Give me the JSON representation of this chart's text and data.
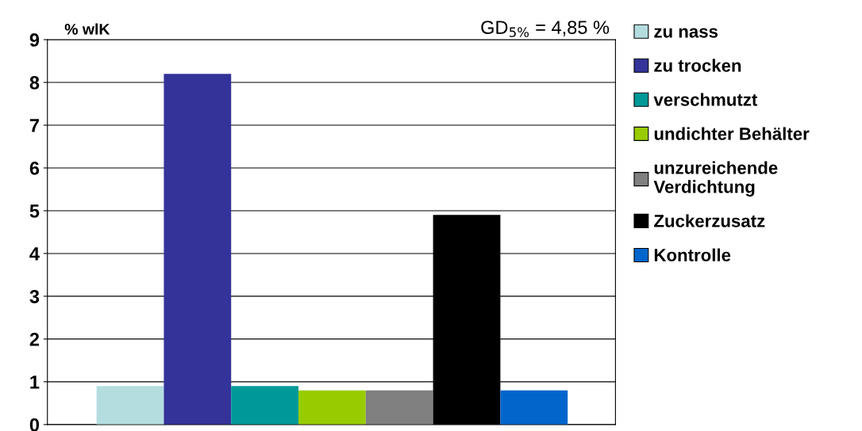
{
  "chart_data": {
    "type": "bar",
    "ylabel": "% wlK",
    "annotations": [
      "GD$_{5%}$ = 4,85 %"
    ],
    "categories": [
      null,
      null,
      null,
      null,
      null,
      null,
      null
    ],
    "series": [
      {
        "name": "zu nass",
        "color": "#b4dde0",
        "values": [
          0.9,
          null,
          null,
          null,
          null,
          null,
          null
        ]
      },
      {
        "name": "zu trocken",
        "color": "#333399",
        "values": [
          null,
          8.2,
          null,
          null,
          null,
          null,
          null
        ]
      },
      {
        "name": "verschmutzt",
        "color": "#009999",
        "values": [
          null,
          null,
          0.9,
          null,
          null,
          null,
          null
        ]
      },
      {
        "name": "undichter Behälter",
        "color": "#99cc00",
        "values": [
          null,
          null,
          null,
          0.8,
          null,
          null,
          null
        ]
      },
      {
        "name": "unzureichende\nVerdichtung",
        "color": "#808080",
        "values": [
          null,
          null,
          null,
          null,
          0.8,
          null,
          null
        ]
      },
      {
        "name": "Zuckerzusatz",
        "color": "#000000",
        "values": [
          null,
          null,
          null,
          null,
          null,
          4.9,
          null
        ]
      },
      {
        "name": "Kontrolle",
        "color": "#0066cc",
        "values": [
          null,
          null,
          null,
          null,
          null,
          null,
          0.8
        ]
      }
    ],
    "stacked": true,
    "ylim": [
      0,
      9
    ],
    "yticks": [
      0,
      1,
      2,
      3,
      4,
      5,
      6,
      7,
      8,
      9
    ],
    "grid": "y",
    "legend": "right"
  }
}
